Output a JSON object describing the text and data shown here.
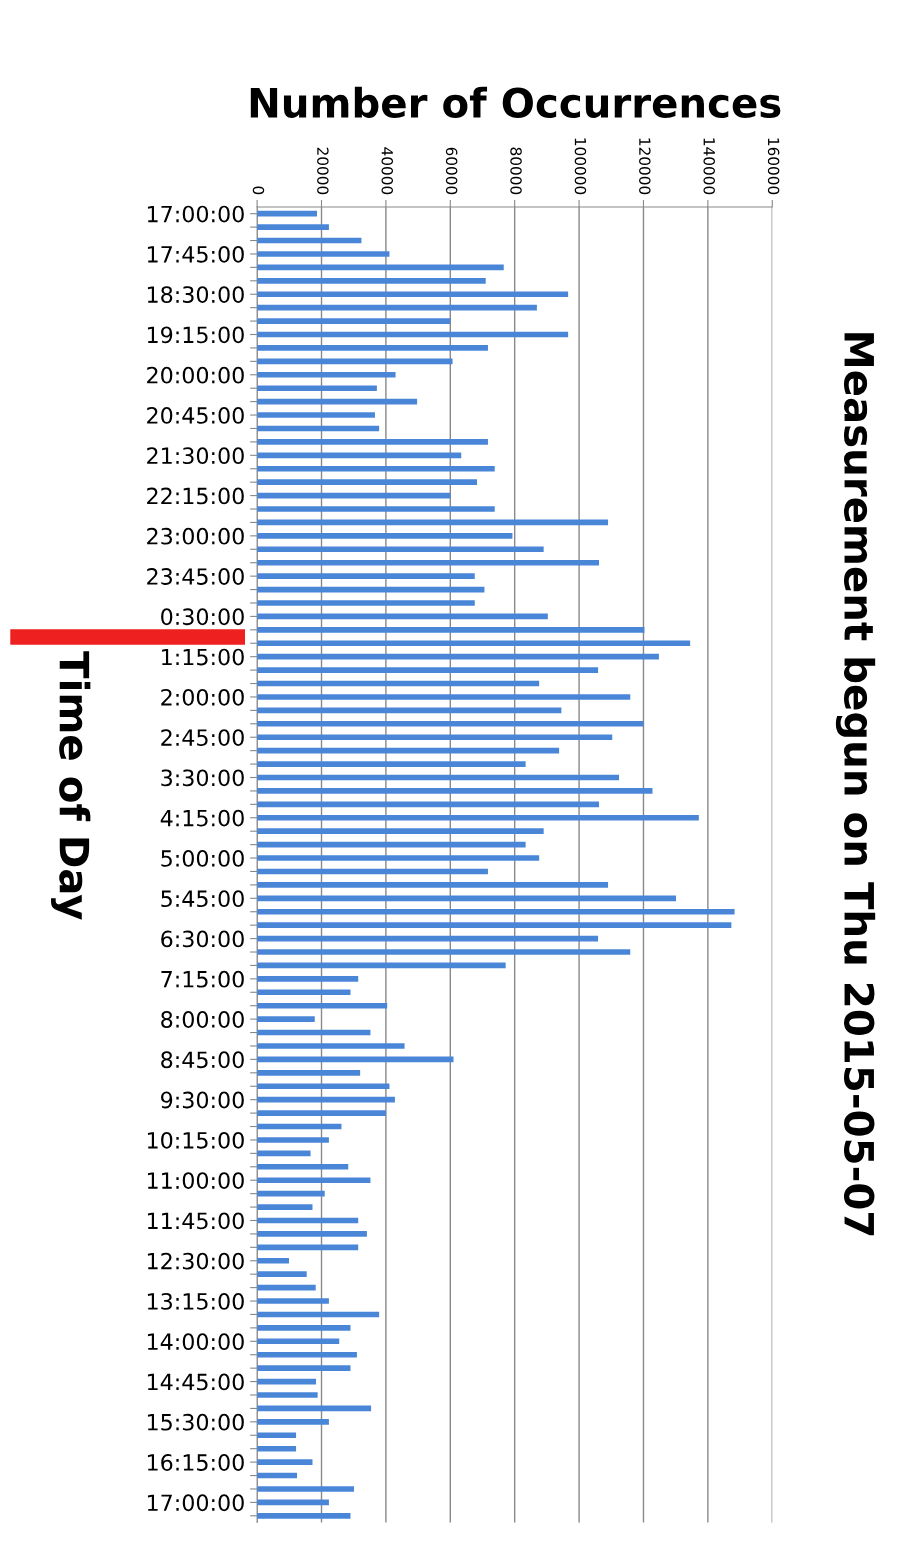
{
  "chart_data": {
    "type": "bar",
    "orientation": "horizontal",
    "title": "Measurement begun on Thu 2015-05-07",
    "xlabel": "Number of Occurrences",
    "ylabel": "Time of Day",
    "categories": [
      "17:00:00",
      null,
      null,
      "17:45:00",
      null,
      null,
      "18:30:00",
      null,
      null,
      "19:15:00",
      null,
      null,
      "20:00:00",
      null,
      null,
      "20:45:00",
      null,
      null,
      "21:30:00",
      null,
      null,
      "22:15:00",
      null,
      null,
      "23:00:00",
      null,
      null,
      "23:45:00",
      null,
      null,
      "0:30:00",
      null,
      null,
      "1:15:00",
      null,
      null,
      "2:00:00",
      null,
      null,
      "2:45:00",
      null,
      null,
      "3:30:00",
      null,
      null,
      "4:15:00",
      null,
      null,
      "5:00:00",
      null,
      null,
      "5:45:00",
      null,
      null,
      "6:30:00",
      null,
      null,
      "7:15:00",
      null,
      null,
      "8:00:00",
      null,
      null,
      "8:45:00",
      null,
      null,
      "9:30:00",
      null,
      null,
      "10:15:00",
      null,
      null,
      "11:00:00",
      null,
      null,
      "11:45:00",
      null,
      null,
      "12:30:00",
      null,
      null,
      "13:15:00",
      null,
      null,
      "14:00:00",
      null,
      null,
      "14:45:00",
      null,
      null,
      "15:30:00",
      null,
      null,
      "16:15:00",
      null,
      null,
      "17:00:00",
      null
    ],
    "values": [
      18600,
      22300,
      32400,
      41100,
      76600,
      71000,
      96600,
      86900,
      60000,
      96600,
      71700,
      60700,
      43000,
      37200,
      49700,
      36600,
      37900,
      71700,
      63400,
      73800,
      68300,
      60000,
      73800,
      109000,
      79300,
      89000,
      106200,
      67600,
      70600,
      67600,
      90300,
      120300,
      134500,
      124800,
      105900,
      87600,
      115900,
      94500,
      120000,
      110300,
      93800,
      83400,
      112400,
      122800,
      106200,
      137200,
      89000,
      83400,
      87600,
      71700,
      109000,
      130100,
      148300,
      147300,
      105900,
      115900,
      77200,
      31400,
      29000,
      40400,
      17900,
      35200,
      45800,
      61000,
      32000,
      41100,
      42800,
      40000,
      26200,
      22300,
      16600,
      28300,
      35200,
      21000,
      17200,
      31400,
      34100,
      31400,
      9900,
      15400,
      18200,
      22300,
      37900,
      29000,
      25500,
      31000,
      29000,
      18300,
      18800,
      35400,
      22300,
      12100,
      12100,
      17200,
      12400,
      30100,
      22300,
      29000
    ],
    "color": "#4a86d8",
    "xlim": [
      0,
      160000
    ],
    "xticks": [
      0,
      20000,
      40000,
      60000,
      80000,
      100000,
      120000,
      140000,
      160000
    ],
    "grid": "x"
  }
}
